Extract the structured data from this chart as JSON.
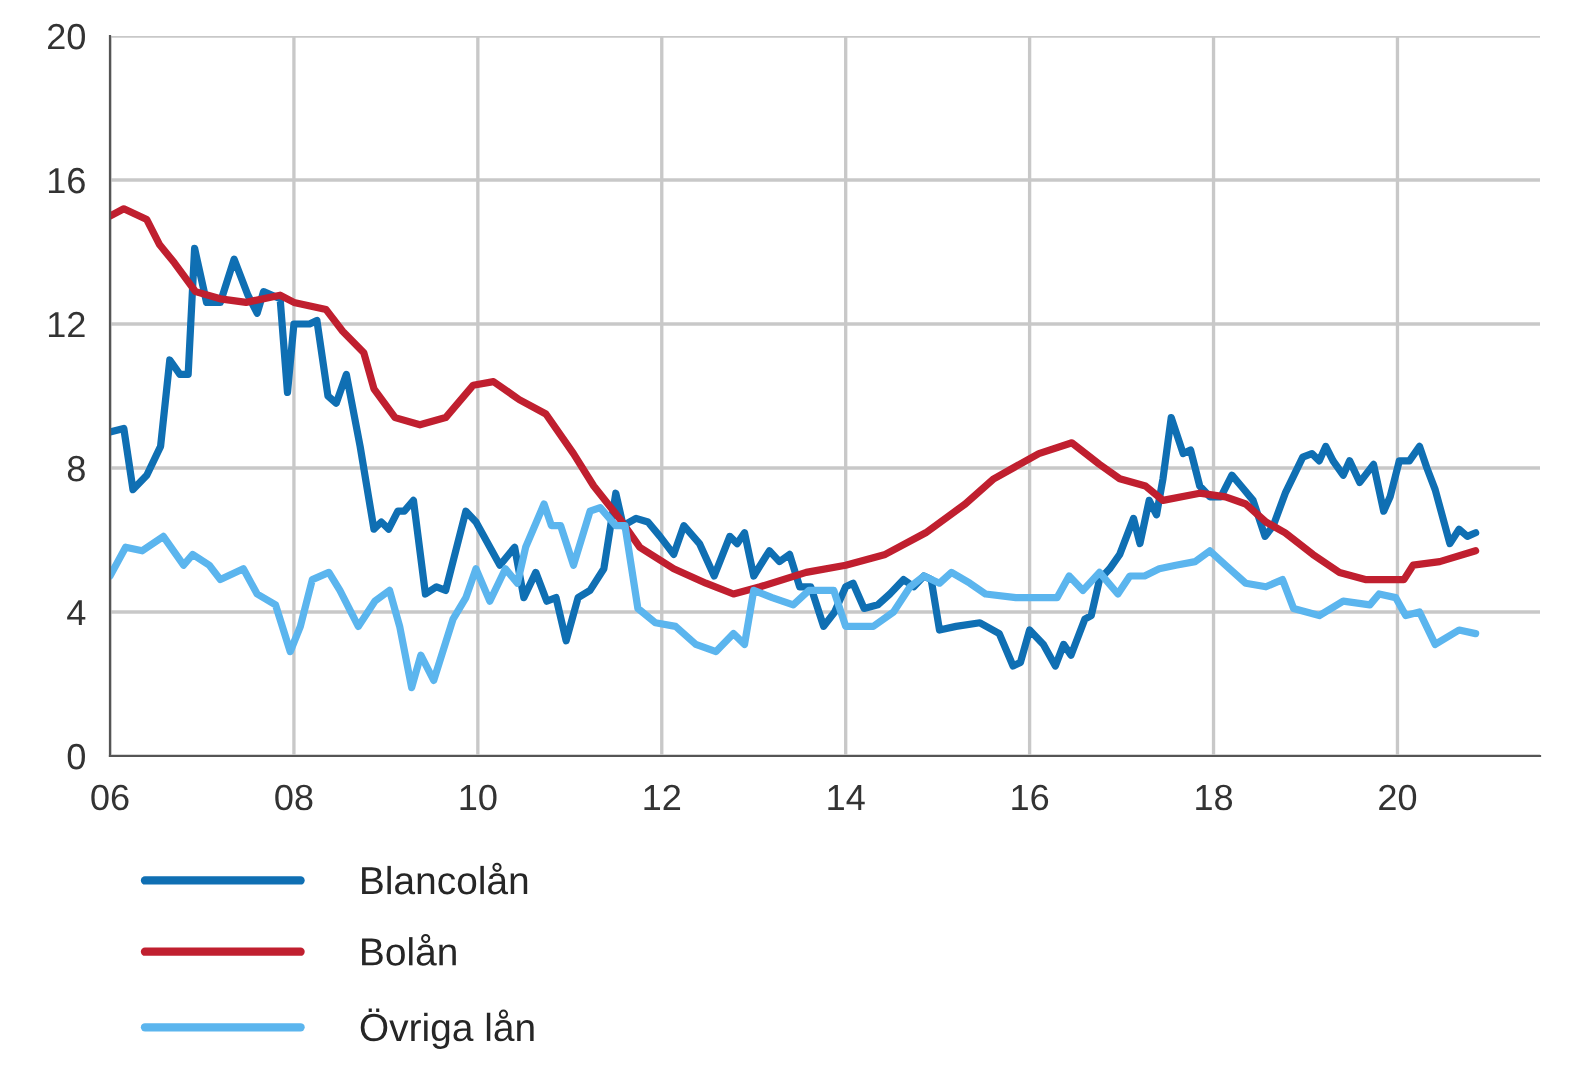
{
  "chart_data": {
    "type": "line",
    "xlim": [
      2006,
      2021.55
    ],
    "xticks": [
      {
        "value": 2006,
        "label": "06"
      },
      {
        "value": 2008,
        "label": "08"
      },
      {
        "value": 2010,
        "label": "10"
      },
      {
        "value": 2012,
        "label": "12"
      },
      {
        "value": 2014,
        "label": "14"
      },
      {
        "value": 2016,
        "label": "16"
      },
      {
        "value": 2018,
        "label": "18"
      },
      {
        "value": 2020,
        "label": "20"
      }
    ],
    "ylim": [
      0,
      20
    ],
    "yticks": [
      0,
      4,
      8,
      12,
      16,
      20
    ],
    "grid": true,
    "legend": "bottom left",
    "line_style": "solid",
    "marker": "none",
    "series": [
      {
        "name": "Blancolån",
        "color": "#0f6fb3",
        "x": [
          2006.0,
          2006.15,
          2006.25,
          2006.4,
          2006.55,
          2006.65,
          2006.76,
          2006.85,
          2006.92,
          2007.05,
          2007.2,
          2007.35,
          2007.5,
          2007.6,
          2007.67,
          2007.85,
          2007.93,
          2008.0,
          2008.17,
          2008.25,
          2008.37,
          2008.46,
          2008.57,
          2008.72,
          2008.87,
          2008.95,
          2009.03,
          2009.13,
          2009.2,
          2009.3,
          2009.43,
          2009.55,
          2009.65,
          2009.87,
          2009.98,
          2010.24,
          2010.4,
          2010.5,
          2010.63,
          2010.75,
          2010.85,
          2010.96,
          2011.09,
          2011.22,
          2011.37,
          2011.5,
          2011.58,
          2011.72,
          2011.85,
          2011.98,
          2012.13,
          2012.24,
          2012.41,
          2012.57,
          2012.74,
          2012.82,
          2012.9,
          2013.0,
          2013.17,
          2013.28,
          2013.39,
          2013.5,
          2013.62,
          2013.76,
          2013.88,
          2014.0,
          2014.08,
          2014.2,
          2014.35,
          2014.48,
          2014.63,
          2014.74,
          2014.85,
          2014.93,
          2015.02,
          2015.2,
          2015.46,
          2015.67,
          2015.82,
          2015.9,
          2016.0,
          2016.15,
          2016.28,
          2016.37,
          2016.45,
          2016.6,
          2016.67,
          2016.76,
          2016.87,
          2016.98,
          2017.13,
          2017.2,
          2017.3,
          2017.38,
          2017.45,
          2017.54,
          2017.67,
          2017.75,
          2017.85,
          2017.96,
          2018.08,
          2018.2,
          2018.3,
          2018.43,
          2018.56,
          2018.65,
          2018.78,
          2018.97,
          2019.07,
          2019.15,
          2019.22,
          2019.3,
          2019.41,
          2019.48,
          2019.59,
          2019.74,
          2019.85,
          2019.92,
          2020.02,
          2020.13,
          2020.24,
          2020.32,
          2020.41,
          2020.57,
          2020.67,
          2020.76,
          2020.85
        ],
        "values": [
          9.0,
          9.1,
          7.4,
          7.8,
          8.6,
          11.0,
          10.6,
          10.6,
          14.1,
          12.6,
          12.6,
          13.8,
          12.8,
          12.3,
          12.9,
          12.7,
          10.1,
          12.0,
          12.0,
          12.1,
          10.0,
          9.8,
          10.6,
          8.6,
          6.3,
          6.5,
          6.3,
          6.8,
          6.8,
          7.1,
          4.5,
          4.7,
          4.6,
          6.8,
          6.5,
          5.3,
          5.8,
          4.4,
          5.1,
          4.3,
          4.4,
          3.2,
          4.4,
          4.6,
          5.2,
          7.3,
          6.4,
          6.6,
          6.5,
          6.1,
          5.6,
          6.4,
          5.9,
          5.0,
          6.1,
          5.9,
          6.2,
          5.0,
          5.7,
          5.4,
          5.6,
          4.7,
          4.7,
          3.6,
          4.0,
          4.7,
          4.8,
          4.1,
          4.2,
          4.5,
          4.9,
          4.7,
          5.0,
          4.9,
          3.5,
          3.6,
          3.7,
          3.4,
          2.5,
          2.6,
          3.5,
          3.1,
          2.5,
          3.1,
          2.8,
          3.8,
          3.9,
          4.9,
          5.2,
          5.6,
          6.6,
          5.9,
          7.1,
          6.7,
          7.7,
          9.4,
          8.4,
          8.5,
          7.5,
          7.2,
          7.2,
          7.8,
          7.5,
          7.1,
          6.1,
          6.4,
          7.3,
          8.3,
          8.4,
          8.2,
          8.6,
          8.2,
          7.8,
          8.2,
          7.6,
          8.1,
          6.8,
          7.2,
          8.2,
          8.2,
          8.6,
          8.0,
          7.4,
          5.9,
          6.3,
          6.1,
          6.2
        ]
      },
      {
        "name": "Bolån",
        "color": "#c01f2f",
        "x": [
          2006.0,
          2006.15,
          2006.4,
          2006.54,
          2006.7,
          2006.93,
          2007.2,
          2007.48,
          2007.85,
          2008.0,
          2008.35,
          2008.53,
          2008.76,
          2008.87,
          2009.1,
          2009.37,
          2009.65,
          2009.95,
          2010.17,
          2010.45,
          2010.74,
          2011.04,
          2011.26,
          2011.54,
          2011.76,
          2012.13,
          2012.48,
          2012.78,
          2013.07,
          2013.57,
          2014.0,
          2014.43,
          2014.87,
          2015.3,
          2015.61,
          2016.1,
          2016.46,
          2016.76,
          2016.98,
          2017.26,
          2017.45,
          2017.85,
          2018.13,
          2018.35,
          2018.57,
          2018.78,
          2019.08,
          2019.37,
          2019.65,
          2020.07,
          2020.17,
          2020.46,
          2020.85
        ],
        "values": [
          15.0,
          15.2,
          14.9,
          14.2,
          13.7,
          12.9,
          12.7,
          12.6,
          12.8,
          12.6,
          12.4,
          11.8,
          11.2,
          10.2,
          9.4,
          9.2,
          9.4,
          10.3,
          10.4,
          9.9,
          9.5,
          8.4,
          7.5,
          6.6,
          5.8,
          5.2,
          4.8,
          4.5,
          4.7,
          5.1,
          5.3,
          5.6,
          6.2,
          7.0,
          7.7,
          8.4,
          8.7,
          8.1,
          7.7,
          7.5,
          7.1,
          7.3,
          7.2,
          7.0,
          6.5,
          6.2,
          5.6,
          5.1,
          4.9,
          4.9,
          5.3,
          5.4,
          5.7
        ]
      },
      {
        "name": "Övriga lån",
        "color": "#5bb5ee",
        "x": [
          2006.0,
          2006.17,
          2006.35,
          2006.58,
          2006.8,
          2006.9,
          2007.08,
          2007.2,
          2007.45,
          2007.6,
          2007.8,
          2007.96,
          2008.07,
          2008.2,
          2008.38,
          2008.5,
          2008.7,
          2008.88,
          2009.04,
          2009.15,
          2009.28,
          2009.38,
          2009.52,
          2009.73,
          2009.87,
          2009.98,
          2010.13,
          2010.3,
          2010.43,
          2010.52,
          2010.72,
          2010.8,
          2010.9,
          2011.04,
          2011.22,
          2011.33,
          2011.5,
          2011.6,
          2011.74,
          2011.93,
          2012.15,
          2012.37,
          2012.59,
          2012.78,
          2012.9,
          2013.0,
          2013.2,
          2013.43,
          2013.6,
          2013.87,
          2014.0,
          2014.3,
          2014.52,
          2014.7,
          2014.85,
          2015.02,
          2015.15,
          2015.35,
          2015.52,
          2015.85,
          2016.1,
          2016.3,
          2016.43,
          2016.58,
          2016.76,
          2016.96,
          2017.09,
          2017.25,
          2017.41,
          2017.59,
          2017.8,
          2017.96,
          2018.13,
          2018.35,
          2018.57,
          2018.75,
          2018.87,
          2019.15,
          2019.41,
          2019.7,
          2019.8,
          2019.98,
          2020.09,
          2020.24,
          2020.41,
          2020.67,
          2020.85
        ],
        "values": [
          5.0,
          5.8,
          5.7,
          6.1,
          5.3,
          5.6,
          5.3,
          4.9,
          5.2,
          4.5,
          4.2,
          2.9,
          3.6,
          4.9,
          5.1,
          4.6,
          3.6,
          4.3,
          4.6,
          3.6,
          1.9,
          2.8,
          2.1,
          3.8,
          4.4,
          5.2,
          4.3,
          5.2,
          4.8,
          5.8,
          7.0,
          6.4,
          6.4,
          5.3,
          6.8,
          6.9,
          6.4,
          6.4,
          4.1,
          3.7,
          3.6,
          3.1,
          2.9,
          3.4,
          3.1,
          4.6,
          4.4,
          4.2,
          4.6,
          4.6,
          3.6,
          3.6,
          4.0,
          4.7,
          5.0,
          4.8,
          5.1,
          4.8,
          4.5,
          4.4,
          4.4,
          4.4,
          5.0,
          4.6,
          5.1,
          4.5,
          5.0,
          5.0,
          5.2,
          5.3,
          5.4,
          5.7,
          5.3,
          4.8,
          4.7,
          4.9,
          4.1,
          3.9,
          4.3,
          4.2,
          4.5,
          4.4,
          3.9,
          4.0,
          3.1,
          3.5,
          3.4
        ]
      }
    ]
  }
}
